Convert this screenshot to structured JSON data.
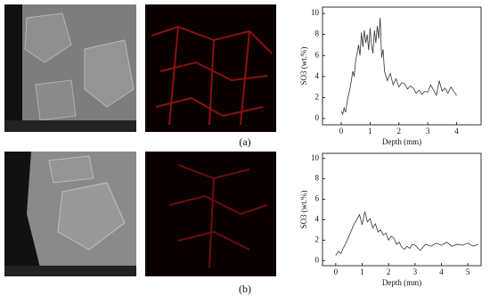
{
  "chart_data": [
    {
      "type": "line",
      "xlabel": "Depth (mm)",
      "ylabel": "SO3 (wt.%)",
      "x": [
        0,
        0.05,
        0.1,
        0.15,
        0.2,
        0.25,
        0.3,
        0.35,
        0.4,
        0.45,
        0.5,
        0.55,
        0.6,
        0.65,
        0.7,
        0.75,
        0.8,
        0.85,
        0.9,
        0.95,
        1.0,
        1.05,
        1.1,
        1.15,
        1.2,
        1.25,
        1.3,
        1.35,
        1.4,
        1.45,
        1.5,
        1.6,
        1.7,
        1.8,
        1.9,
        2.0,
        2.1,
        2.2,
        2.3,
        2.4,
        2.5,
        2.6,
        2.7,
        2.8,
        2.9,
        3.0,
        3.1,
        3.2,
        3.3,
        3.4,
        3.5,
        3.6,
        3.7,
        3.8,
        3.9,
        4.0
      ],
      "values": [
        0.7,
        0.4,
        1.0,
        0.6,
        1.5,
        2.2,
        2.8,
        3.6,
        4.5,
        4.0,
        5.5,
        6.2,
        7.0,
        6.0,
        8.2,
        6.8,
        8.4,
        7.2,
        8.0,
        6.5,
        8.6,
        7.0,
        6.2,
        8.4,
        7.2,
        8.8,
        7.6,
        9.6,
        5.8,
        6.6,
        4.5,
        3.6,
        4.3,
        3.2,
        3.8,
        3.0,
        3.4,
        3.3,
        2.8,
        3.1,
        2.9,
        2.4,
        2.7,
        2.3,
        2.6,
        2.5,
        3.2,
        2.7,
        2.2,
        3.6,
        2.6,
        2.9,
        2.4,
        3.0,
        2.6,
        2.2
      ],
      "color": "#333333",
      "xlim": [
        -0.65,
        4.85
      ],
      "ylim": [
        -0.6,
        10.6
      ],
      "xticks": [
        0,
        1,
        2,
        3,
        4
      ],
      "yticks": [
        0,
        2,
        4,
        6,
        8,
        10
      ]
    },
    {
      "type": "line",
      "xlabel": "Depth (mm)",
      "ylabel": "SO3 (wt.%)",
      "x": [
        0,
        0.1,
        0.2,
        0.3,
        0.4,
        0.5,
        0.6,
        0.7,
        0.8,
        0.9,
        1.0,
        1.1,
        1.2,
        1.3,
        1.4,
        1.5,
        1.6,
        1.7,
        1.8,
        1.9,
        2.0,
        2.1,
        2.2,
        2.3,
        2.4,
        2.5,
        2.6,
        2.7,
        2.8,
        2.9,
        3.0,
        3.2,
        3.4,
        3.6,
        3.8,
        4.0,
        4.2,
        4.4,
        4.6,
        4.8,
        5.0,
        5.2,
        5.4
      ],
      "values": [
        0.5,
        0.9,
        0.7,
        1.3,
        1.8,
        2.4,
        3.0,
        3.6,
        4.0,
        4.5,
        3.5,
        4.8,
        3.8,
        4.1,
        3.2,
        3.6,
        2.8,
        3.0,
        2.5,
        2.7,
        2.0,
        2.4,
        2.2,
        1.6,
        1.8,
        1.3,
        1.1,
        1.4,
        1.2,
        1.6,
        1.5,
        1.0,
        1.6,
        1.4,
        1.7,
        1.5,
        1.8,
        1.4,
        1.6,
        1.5,
        1.7,
        1.4,
        1.6
      ],
      "color": "#333333",
      "xlim": [
        -0.5,
        5.5
      ],
      "ylim": [
        -0.5,
        10.5
      ],
      "xticks": [
        0,
        1,
        2,
        3,
        4,
        5
      ],
      "yticks": [
        0,
        2,
        4,
        6,
        8,
        10
      ]
    }
  ],
  "figure": {
    "labels": [
      "(a)",
      "(b)"
    ]
  }
}
